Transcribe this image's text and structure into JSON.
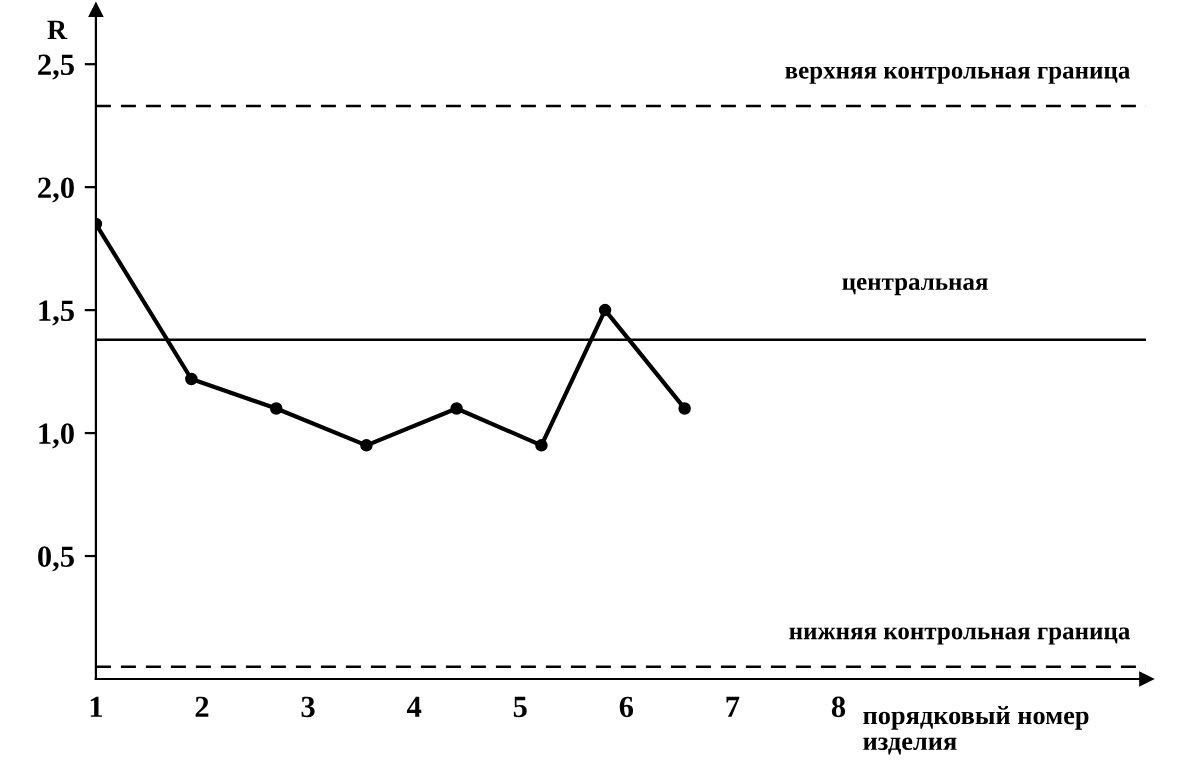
{
  "chart_data": {
    "type": "line",
    "ylabel": "R",
    "xlabel": "порядковый номер изделия",
    "x": [
      1,
      1.9,
      2.7,
      3.55,
      4.4,
      5.2,
      5.8,
      6.55
    ],
    "series": [
      {
        "color": "#000000",
        "values": [
          1.85,
          1.22,
          1.1,
          0.95,
          1.1,
          0.95,
          1.5,
          1.1
        ]
      }
    ],
    "marker": "circle",
    "line_style": "solid",
    "xlim": [
      1,
      10.9
    ],
    "xticks": [
      1,
      2,
      3,
      4,
      5,
      6,
      7,
      8
    ],
    "ylim": [
      0,
      2.72
    ],
    "yticks": [
      {
        "value": 0.5,
        "label": "0,5"
      },
      {
        "value": 1.0,
        "label": "1,0"
      },
      {
        "value": 1.5,
        "label": "1,5"
      },
      {
        "value": 2.0,
        "label": "2,0"
      },
      {
        "value": 2.5,
        "label": "2,5"
      }
    ],
    "ref_lines": [
      {
        "axis": "y",
        "value": 2.33,
        "label": "верхняя контрольная граница",
        "line_style": "dashed",
        "color": "#000000"
      },
      {
        "axis": "y",
        "value": 1.38,
        "label": "центральная",
        "line_style": "solid",
        "color": "#000000"
      },
      {
        "axis": "y",
        "value": 0.05,
        "label": "нижняя контрольная граница",
        "line_style": "dashed",
        "color": "#000000"
      }
    ],
    "grid": false,
    "legend": false
  }
}
